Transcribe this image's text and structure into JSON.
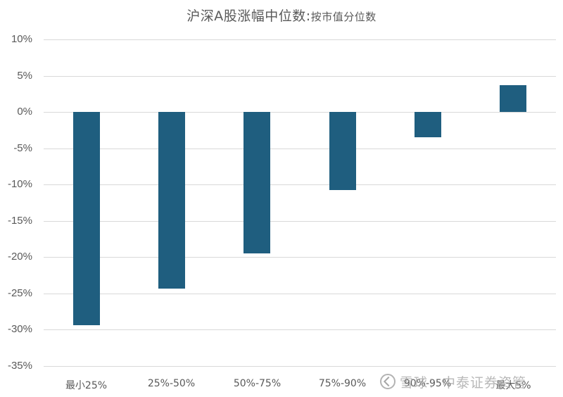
{
  "chart_data": {
    "type": "bar",
    "title": "沪深A股涨幅中位数:按市值分位数",
    "title_main": "沪深A股涨幅中位数:",
    "title_sub": "按市值分位数",
    "categories": [
      "最小25%",
      "25%-50%",
      "50%-75%",
      "75%-90%",
      "90%-95%",
      "最大5%"
    ],
    "values": [
      -29.4,
      -24.4,
      -19.5,
      -10.8,
      -3.5,
      3.7
    ],
    "value_unit": "%",
    "xlabel": "",
    "ylabel": "",
    "ylim": [
      -35,
      10
    ],
    "yticks": [
      10,
      5,
      0,
      -5,
      -10,
      -15,
      -20,
      -25,
      -30,
      -35
    ],
    "ytick_labels": [
      "10%",
      "5%",
      "0%",
      "-5%",
      "-10%",
      "-15%",
      "-20%",
      "-25%",
      "-30%",
      "-35%"
    ],
    "grid": true,
    "legend": null,
    "bar_color": "#1f5e7f"
  },
  "watermark": {
    "text": "雪球：中泰证券资管",
    "icon": "snowball-logo-icon"
  }
}
